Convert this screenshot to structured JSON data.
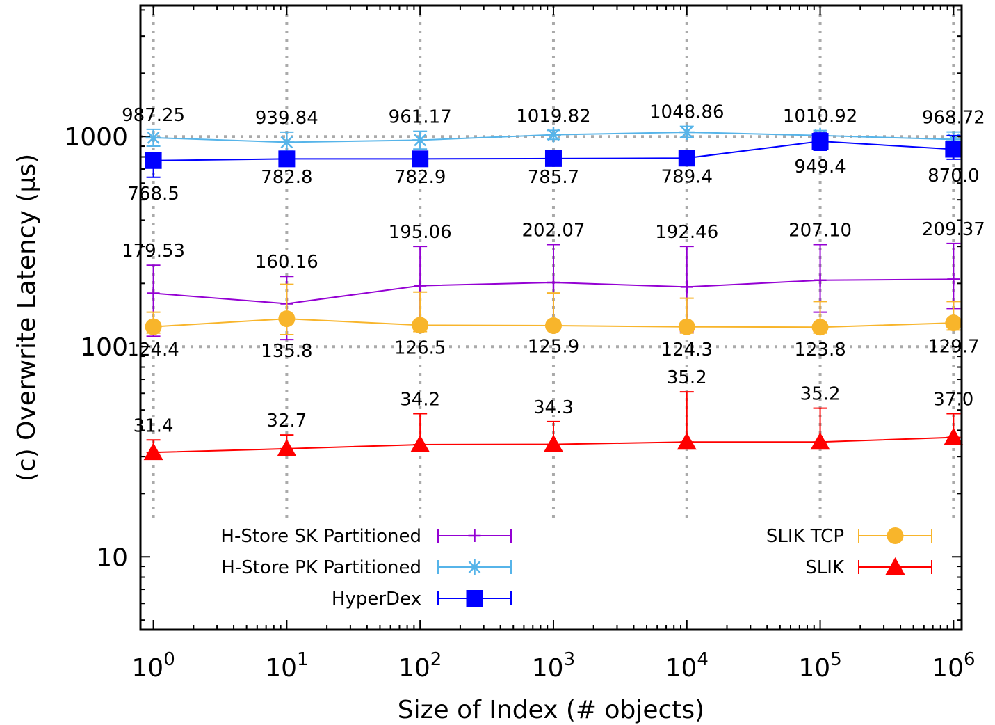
{
  "chart_data": {
    "type": "line",
    "xlabel": "Size of Index (# objects)",
    "ylabel": "(c) Overwrite Latency (µs)",
    "x_scale": "log",
    "y_scale": "log",
    "xlim": [
      0.8,
      1150000
    ],
    "ylim": [
      4.5,
      4200
    ],
    "grid": "dotted at major ticks",
    "x": [
      1,
      10,
      100,
      1000,
      10000,
      100000,
      1000000
    ],
    "x_tick_base": [
      "10",
      "10",
      "10",
      "10",
      "10",
      "10",
      "10"
    ],
    "x_tick_exp": [
      "0",
      "1",
      "2",
      "3",
      "4",
      "5",
      "6"
    ],
    "y_ticks": [
      10,
      100,
      1000
    ],
    "y_tick_labels": [
      "10",
      "100",
      "1000"
    ],
    "series": [
      {
        "name": "H-Store SK Partitioned",
        "color": "#9400d3",
        "marker": "plus",
        "values": [
          179.53,
          160.16,
          195.06,
          202.07,
          192.46,
          207.1,
          209.37
        ],
        "err_low": [
          112,
          108,
          122,
          126,
          118,
          146,
          152
        ],
        "err_high": [
          244,
          216,
          300,
          306,
          300,
          306,
          310
        ],
        "labels": [
          "179.53",
          "160.16",
          "195.06",
          "202.07",
          "192.46",
          "207.10",
          "209.37"
        ],
        "label_pos": "above"
      },
      {
        "name": "H-Store PK Partitioned",
        "color": "#56b4e9",
        "marker": "star",
        "values": [
          987.25,
          939.84,
          961.17,
          1019.82,
          1048.86,
          1010.92,
          968.72
        ],
        "err_low": [
          900,
          852,
          872,
          970,
          990,
          960,
          888
        ],
        "err_high": [
          1082,
          1050,
          1060,
          1070,
          1118,
          1068,
          1052
        ],
        "labels": [
          "987.25",
          "939.84",
          "961.17",
          "1019.82",
          "1048.86",
          "1010.92",
          "968.72"
        ],
        "label_pos": "above"
      },
      {
        "name": "HyperDex",
        "color": "#0000ff",
        "marker": "square",
        "values": [
          768.5,
          782.8,
          782.9,
          785.7,
          789.4,
          949.4,
          870.0
        ],
        "err_low": [
          640,
          768,
          768,
          768,
          770,
          860,
          780
        ],
        "err_high": [
          840,
          800,
          800,
          806,
          810,
          1040,
          1010
        ],
        "labels": [
          "768.5",
          "782.8",
          "782.9",
          "785.7",
          "789.4",
          "949.4",
          "870.0"
        ],
        "label_pos": "below"
      },
      {
        "name": "SLIK TCP",
        "color": "#f8b52b",
        "marker": "circle",
        "values": [
          124.4,
          135.8,
          126.5,
          125.9,
          124.3,
          123.8,
          129.7
        ],
        "err_low": [
          116,
          114,
          118,
          120,
          116,
          116,
          120
        ],
        "err_high": [
          146,
          198,
          182,
          180,
          170,
          164,
          164
        ],
        "labels": [
          "124.4",
          "135.8",
          "126.5",
          "125.9",
          "124.3",
          "123.8",
          "129.7"
        ],
        "label_pos": "below"
      },
      {
        "name": "SLIK",
        "color": "#ff0000",
        "marker": "triangle",
        "values": [
          31.4,
          32.7,
          34.2,
          34.3,
          35.2,
          35.2,
          37.0
        ],
        "err_low": [
          31.4,
          32.7,
          34.2,
          34.3,
          35.2,
          35.2,
          37.0
        ],
        "err_high": [
          36,
          38,
          48,
          44,
          61,
          51,
          48
        ],
        "labels": [
          "31.4",
          "32.7",
          "34.2",
          "34.3",
          "35.2",
          "35.2",
          "37.0"
        ],
        "label_pos": "above"
      }
    ],
    "legend": {
      "placement": "bottom, two groups (left and right)",
      "left": [
        "H-Store SK Partitioned",
        "H-Store PK Partitioned",
        "HyperDex"
      ],
      "right": [
        "SLIK TCP",
        "SLIK"
      ]
    }
  }
}
